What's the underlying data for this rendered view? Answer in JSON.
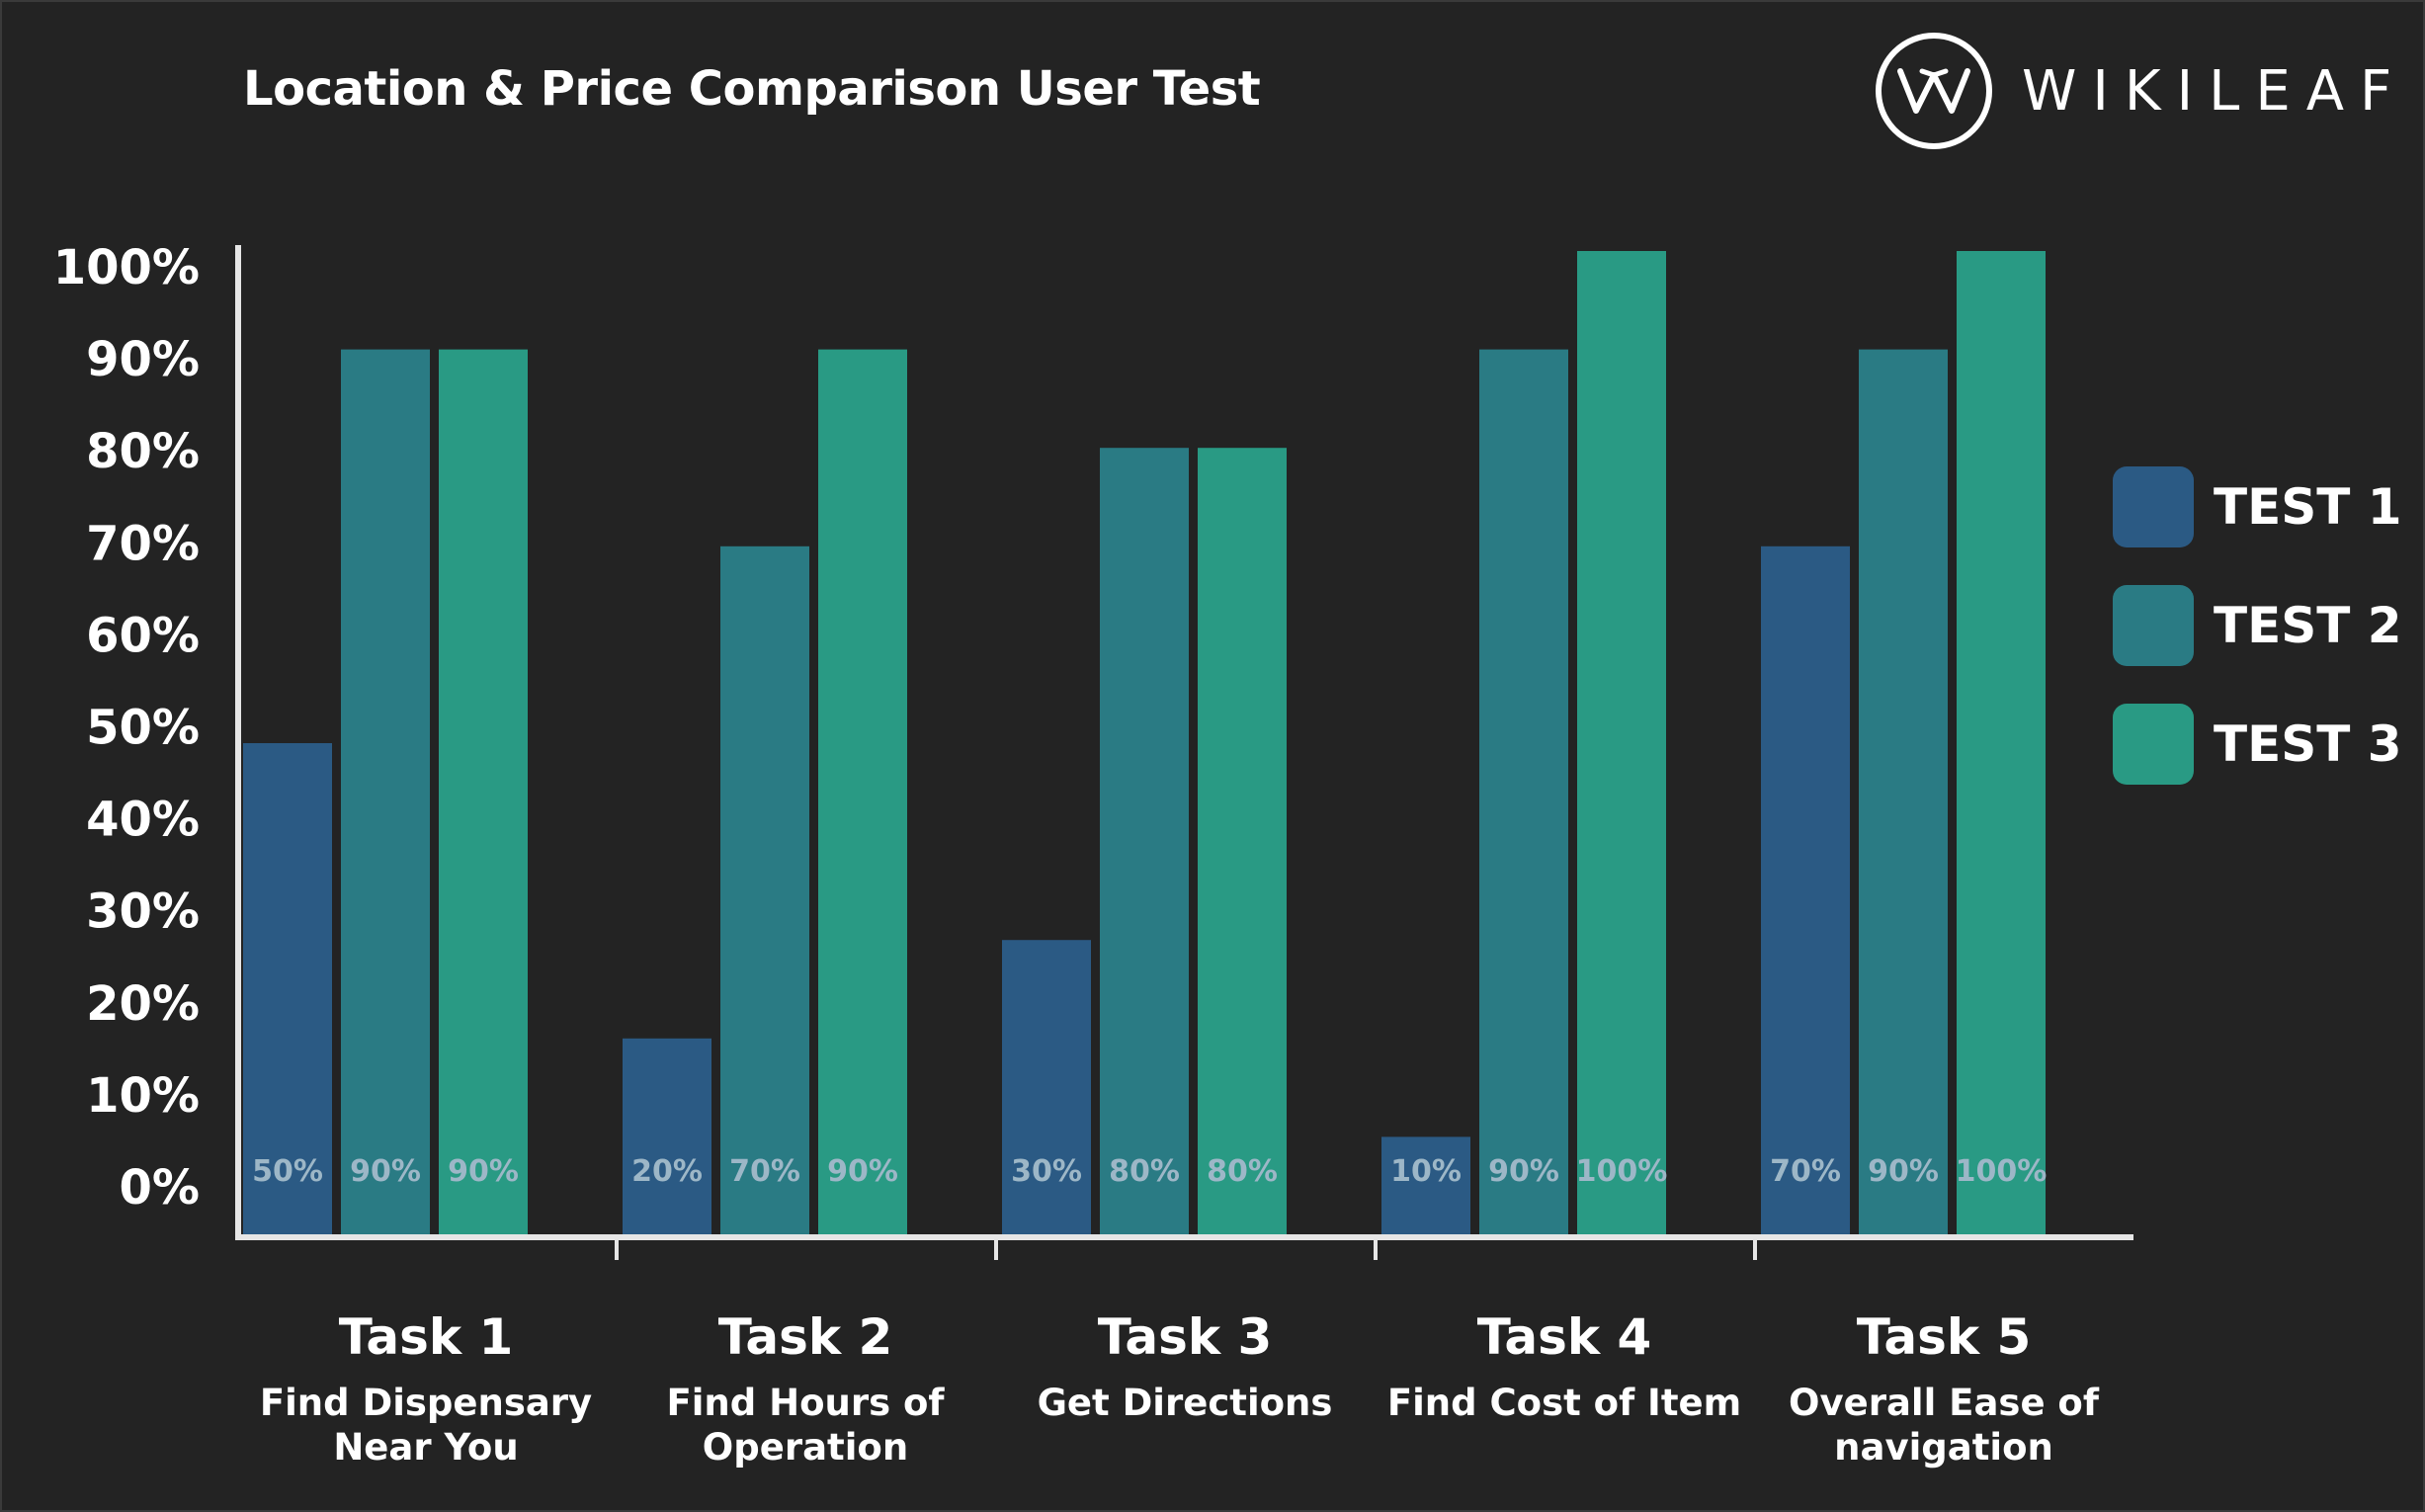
{
  "header": {
    "title": "Location & Price Comparison User Test",
    "brand_name": "WIKILEAF"
  },
  "colors": {
    "background": "#232323",
    "test1": "#2b5a84",
    "test2": "#2a7b84",
    "test3": "#299a84",
    "axis": "#e6e6e6",
    "text": "#ffffff",
    "value_label": "#9db7c7"
  },
  "chart_data": {
    "type": "bar",
    "title": "Location & Price Comparison User Test",
    "xlabel": "",
    "ylabel": "",
    "ylim": [
      0,
      100
    ],
    "yticks": [
      "0%",
      "10%",
      "20%",
      "30%",
      "40%",
      "50%",
      "60%",
      "70%",
      "80%",
      "90%",
      "100%"
    ],
    "categories": [
      {
        "name": "Task 1",
        "description": [
          "Find Dispensary",
          "Near You"
        ]
      },
      {
        "name": "Task 2",
        "description": [
          "Find Hours of",
          "Operation"
        ]
      },
      {
        "name": "Task 3",
        "description": [
          "Get Directions"
        ]
      },
      {
        "name": "Task 4",
        "description": [
          "Find Cost of Item"
        ]
      },
      {
        "name": "Task 5",
        "description": [
          "Overall Ease of",
          "navigation"
        ]
      }
    ],
    "series": [
      {
        "name": "TEST 1",
        "values": [
          50,
          20,
          30,
          10,
          70
        ],
        "labels": [
          "50%",
          "20%",
          "30%",
          "10%",
          "70%"
        ]
      },
      {
        "name": "TEST 2",
        "values": [
          90,
          70,
          80,
          90,
          90
        ],
        "labels": [
          "90%",
          "70%",
          "80%",
          "90%",
          "90%"
        ]
      },
      {
        "name": "TEST 3",
        "values": [
          90,
          90,
          80,
          100,
          100
        ],
        "labels": [
          "90%",
          "90%",
          "80%",
          "100%",
          "100%"
        ]
      }
    ],
    "legend": {
      "placement": "right"
    },
    "grid": false
  }
}
